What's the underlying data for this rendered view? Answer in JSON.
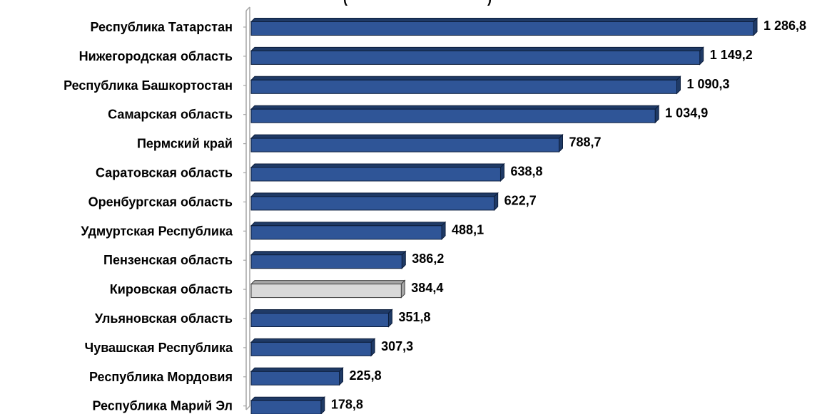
{
  "chart_data": {
    "type": "bar",
    "orientation": "horizontal",
    "title_fragment": "(",
    "title_fragment_end": ")",
    "categories": [
      "Республика Татарстан",
      "Нижегородская область",
      "Республика Башкортостан",
      "Самарская область",
      "Пермский край",
      "Саратовская область",
      "Оренбургская область",
      "Удмуртская Республика",
      "Пензенская область",
      "Кировская область",
      "Ульяновская область",
      "Чувашская Республика",
      "Республика Мордовия",
      "Республика  Марий Эл"
    ],
    "values": [
      1286.8,
      1149.2,
      1090.3,
      1034.9,
      788.7,
      638.8,
      622.7,
      488.1,
      386.2,
      384.4,
      351.8,
      307.3,
      225.8,
      178.8
    ],
    "value_labels": [
      "1 286,8",
      "1 149,2",
      "1 090,3",
      "1 034,9",
      "788,7",
      "638,8",
      "622,7",
      "488,1",
      "386,2",
      "384,4",
      "351,8",
      "307,3",
      "225,8",
      "178,8"
    ],
    "highlighted_category": "Кировская область",
    "xlim": [
      0,
      1286.8
    ],
    "grid": false,
    "legend": "none",
    "colors": {
      "bar_fill": "#2F5597",
      "bar_side": "#1F3A66",
      "bar_stroke": "#0D1E3C",
      "highlight_fill": "#D9D9D9",
      "highlight_side": "#A6A6A6",
      "highlight_stroke": "#404040",
      "axis": "#A6A6A6"
    }
  }
}
